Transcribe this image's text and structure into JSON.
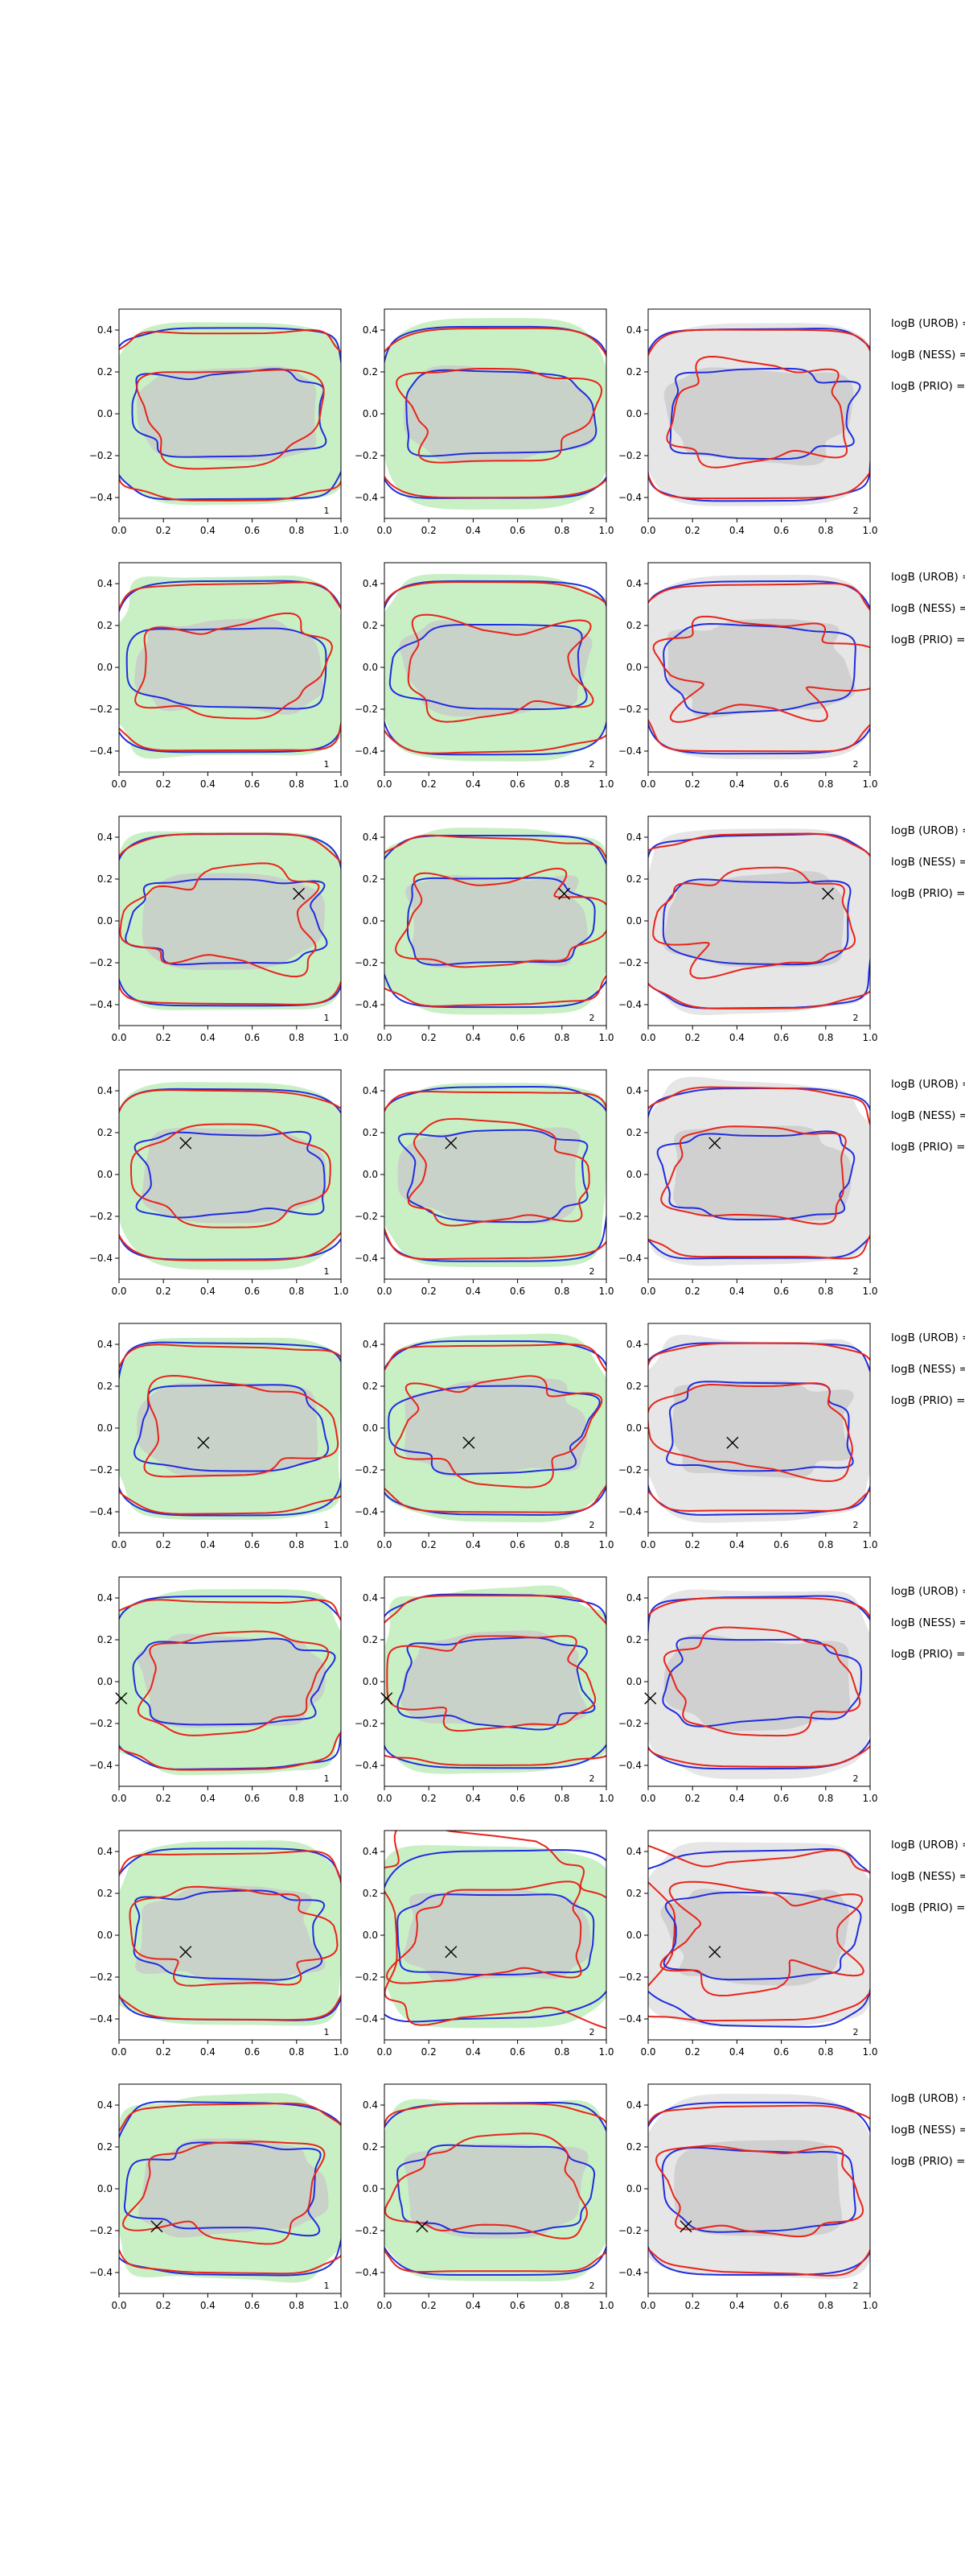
{
  "chart_data": {
    "type": "contour_grid",
    "title": "",
    "rows": 8,
    "cols": 3,
    "x_range": [
      0.0,
      1.0
    ],
    "y_range": [
      -0.5,
      0.5
    ],
    "x_ticks": [
      "0.0",
      "0.2",
      "0.4",
      "0.6",
      "0.8",
      "1.0"
    ],
    "y_ticks": [
      "0.4",
      "0.2",
      "0.0",
      "−0.2",
      "−0.4"
    ],
    "y_tick_values": [
      0.4,
      0.2,
      0.0,
      -0.2,
      -0.4
    ],
    "column_corner_labels": [
      "1",
      "2",
      "2"
    ],
    "side_labels": [
      "logB (UROB) =",
      "logB (NESS) =",
      "logB (PRIO) ="
    ],
    "marker_points": [
      null,
      null,
      {
        "x": 0.81,
        "y": 0.13
      },
      {
        "x": 0.3,
        "y": 0.15
      },
      {
        "x": 0.38,
        "y": -0.07
      },
      {
        "x": 0.01,
        "y": -0.08
      },
      {
        "x": 0.3,
        "y": -0.08
      },
      {
        "x": 0.17,
        "y": -0.18
      }
    ],
    "colors": {
      "outer_red": "#e8241a",
      "inner_red": "#e8241a",
      "outer_blue": "#1f2de0",
      "inner_blue": "#1f2de0",
      "green_fill": "#c9f0c5",
      "gray_fill": "#e6e6e6",
      "inner_gray_fill": "#c8c8c8",
      "axis": "#000000"
    }
  }
}
